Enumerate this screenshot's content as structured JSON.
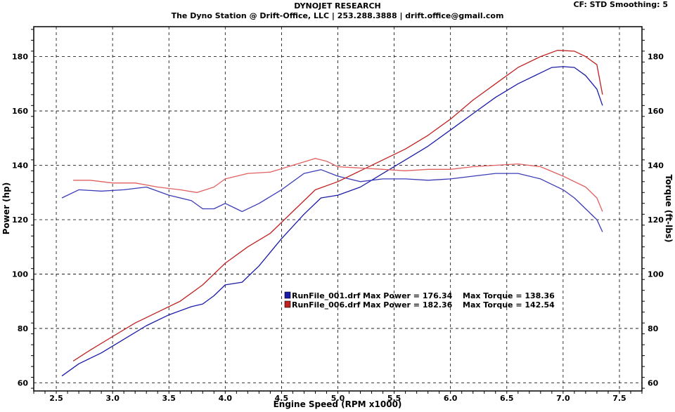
{
  "header": {
    "title": "DYNOJET RESEARCH",
    "subtitle": "The Dyno Station @ Drift-Office, LLC | 253.288.3888 | drift.office@gmail.com",
    "cf_info": "CF: STD  Smoothing: 5"
  },
  "chart_data": {
    "type": "line",
    "xlabel": "Engine Speed (RPM x1000)",
    "ylabel_left": "Power (hp)",
    "ylabel_right": "Torque (ft-lbs)",
    "xlim": [
      2.3,
      7.7
    ],
    "ylim": [
      57,
      191
    ],
    "x_ticks": [
      "2.5",
      "3.0",
      "3.5",
      "4.0",
      "4.5",
      "5.0",
      "5.5",
      "6.0",
      "6.5",
      "7.0",
      "7.5"
    ],
    "y_ticks": [
      "60",
      "80",
      "100",
      "120",
      "140",
      "160",
      "180"
    ],
    "grid": true,
    "series": [
      {
        "name": "RunFile_001.drf",
        "kind": "power",
        "color": "#1a1aa8",
        "x": [
          2.55,
          2.7,
          2.9,
          3.1,
          3.3,
          3.5,
          3.7,
          3.8,
          3.9,
          4.0,
          4.15,
          4.3,
          4.5,
          4.7,
          4.85,
          5.0,
          5.2,
          5.4,
          5.6,
          5.8,
          6.0,
          6.2,
          6.4,
          6.6,
          6.8,
          6.9,
          7.0,
          7.1,
          7.2,
          7.3,
          7.35
        ],
        "y": [
          62.5,
          67,
          71,
          76,
          81,
          85,
          88,
          89,
          92,
          96,
          97,
          103,
          113,
          122,
          128,
          129,
          132,
          137,
          142,
          147,
          153,
          159,
          165,
          170,
          174,
          176,
          176.3,
          176,
          173,
          168,
          162
        ]
      },
      {
        "name": "RunFile_001.drf",
        "kind": "torque",
        "color": "#3b3bb8",
        "x": [
          2.55,
          2.7,
          2.9,
          3.1,
          3.3,
          3.5,
          3.7,
          3.8,
          3.9,
          4.0,
          4.1,
          4.15,
          4.3,
          4.5,
          4.7,
          4.85,
          5.0,
          5.2,
          5.4,
          5.6,
          5.8,
          6.0,
          6.2,
          6.4,
          6.6,
          6.8,
          7.0,
          7.1,
          7.2,
          7.3,
          7.35
        ],
        "y": [
          128,
          131,
          130.5,
          131,
          132,
          129,
          127,
          124,
          124,
          126,
          124,
          123,
          126,
          131,
          137,
          138.4,
          136,
          134,
          135,
          135,
          134.5,
          135,
          136,
          137,
          137,
          135,
          131,
          128,
          124,
          120,
          115.5
        ]
      },
      {
        "name": "RunFile_006.drf",
        "kind": "power",
        "color": "#c02020",
        "x": [
          2.65,
          2.8,
          3.0,
          3.2,
          3.4,
          3.6,
          3.8,
          4.0,
          4.2,
          4.4,
          4.6,
          4.8,
          5.0,
          5.2,
          5.4,
          5.6,
          5.8,
          6.0,
          6.2,
          6.4,
          6.6,
          6.8,
          6.95,
          7.1,
          7.2,
          7.3,
          7.35
        ],
        "y": [
          68,
          72,
          77,
          82,
          86,
          90,
          96,
          104,
          110,
          115,
          123,
          131,
          134,
          138,
          142,
          146,
          151,
          157,
          164,
          170,
          176,
          180,
          182.3,
          182,
          180,
          177,
          166
        ]
      },
      {
        "name": "RunFile_006.drf",
        "kind": "torque",
        "color": "#e06060",
        "x": [
          2.65,
          2.8,
          3.0,
          3.2,
          3.4,
          3.6,
          3.75,
          3.9,
          4.0,
          4.2,
          4.4,
          4.6,
          4.8,
          4.9,
          5.0,
          5.2,
          5.4,
          5.6,
          5.8,
          6.0,
          6.2,
          6.4,
          6.6,
          6.8,
          7.0,
          7.2,
          7.3,
          7.35
        ],
        "y": [
          134.5,
          134.5,
          133.5,
          133.5,
          132,
          131,
          130,
          132,
          135,
          137,
          137.5,
          140,
          142.5,
          141.5,
          139.5,
          139,
          138.5,
          138,
          138.5,
          138.5,
          139.5,
          140,
          140.5,
          139.5,
          136,
          132,
          128,
          123
        ]
      }
    ],
    "legend": [
      {
        "file": "RunFile_001.drf",
        "power_label": "Max Power = 176.34",
        "torque_label": "Max Torque = 138.36",
        "color": "#1a1aa8"
      },
      {
        "file": "RunFile_006.drf",
        "power_label": "Max Power = 182.36",
        "torque_label": "Max Torque = 142.54",
        "color": "#c02020"
      }
    ],
    "legend_position": "center"
  }
}
